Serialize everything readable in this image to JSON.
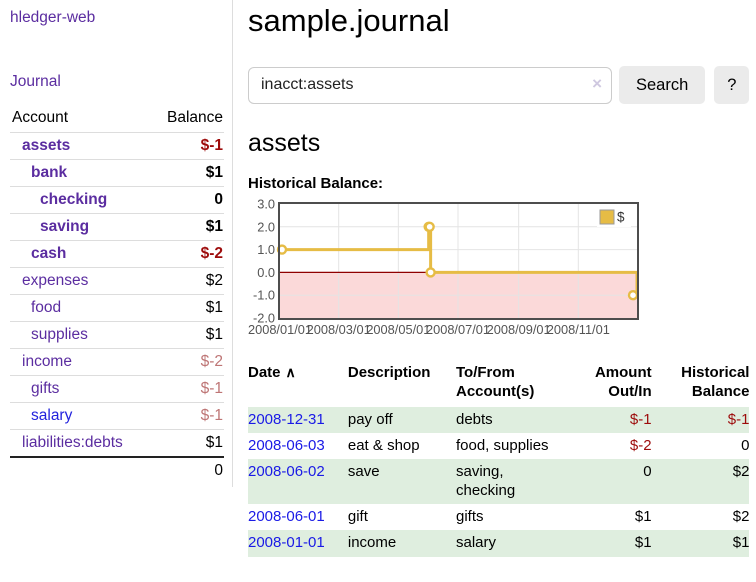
{
  "sidebar": {
    "brand": "hledger-web",
    "nav": {
      "journal": "Journal"
    },
    "table": {
      "account_header": "Account",
      "balance_header": "Balance"
    },
    "accounts": [
      {
        "name": "assets",
        "balance": "$-1"
      },
      {
        "name": "bank",
        "balance": "$1"
      },
      {
        "name": "checking",
        "balance": "0"
      },
      {
        "name": "saving",
        "balance": "$1"
      },
      {
        "name": "cash",
        "balance": "$-2"
      },
      {
        "name": "expenses",
        "balance": "$2"
      },
      {
        "name": "food",
        "balance": "$1"
      },
      {
        "name": "supplies",
        "balance": "$1"
      },
      {
        "name": "income",
        "balance": "$-2"
      },
      {
        "name": "gifts",
        "balance": "$-1"
      },
      {
        "name": "salary",
        "balance": "$-1"
      },
      {
        "name": "liabilities:debts",
        "balance": "$1"
      }
    ],
    "total_balance": "0"
  },
  "header": {
    "title": "sample.journal"
  },
  "search": {
    "value": "inacct:assets",
    "clear_icon": "×",
    "search_button": "Search",
    "help_button": "?"
  },
  "account_page": {
    "title": "assets",
    "chart_heading": "Historical Balance:"
  },
  "chart_data": {
    "type": "line",
    "style": "steps",
    "title": "Historical Balance",
    "series": [
      {
        "name": "$",
        "color": "#e6bc45",
        "points": [
          {
            "date": "2008-01-01",
            "value": 1
          },
          {
            "date": "2008-06-01",
            "value": 2
          },
          {
            "date": "2008-06-02",
            "value": 2
          },
          {
            "date": "2008-06-03",
            "value": 0
          },
          {
            "date": "2008-12-31",
            "value": -1
          }
        ]
      }
    ],
    "xlim": [
      "2008-01-01",
      "2008-12-31"
    ],
    "ylim": [
      -2,
      3
    ],
    "y_ticks": [
      "3.0",
      "2.0",
      "1.0",
      "0.0",
      "-1.0",
      "-2.0"
    ],
    "x_ticks": [
      "2008/01/01",
      "2008/03/01",
      "2008/05/01",
      "2008/07/01",
      "2008/09/01",
      "2008/11/01"
    ],
    "grid": true,
    "legend_position": "top-right",
    "negative_region_color": "#fbd9d9",
    "zero_line_color": "#8f0000",
    "grid_color": "#e4e4e4",
    "border_color": "#4d4d4d",
    "axis_label_color": "#545454"
  },
  "register": {
    "headers": {
      "date": "Date",
      "description": "Description",
      "accounts": "To/From Account(s)",
      "amount": "Amount Out/In",
      "balance": "Historical Balance"
    },
    "sort_icon": "∧",
    "rows": [
      {
        "date": "2008-12-31",
        "description": "pay off",
        "accounts": "debts",
        "amount": "$-1",
        "balance": "$-1"
      },
      {
        "date": "2008-06-03",
        "description": "eat & shop",
        "accounts": "food, supplies",
        "amount": "$-2",
        "balance": "0"
      },
      {
        "date": "2008-06-02",
        "description": "save",
        "accounts": "saving, checking",
        "amount": "0",
        "balance": "$2"
      },
      {
        "date": "2008-06-01",
        "description": "gift",
        "accounts": "gifts",
        "amount": "$1",
        "balance": "$2"
      },
      {
        "date": "2008-01-01",
        "description": "income",
        "accounts": "salary",
        "amount": "$1",
        "balance": "$1"
      }
    ]
  },
  "colors": {
    "link_purple": "#5b2da0",
    "link_blue": "#1a1ae6",
    "negative": "#9d0b0b",
    "negative_soft": "#be7575",
    "row_stripe_green": "#dfeedf",
    "chart_gold": "#e6bc45"
  }
}
